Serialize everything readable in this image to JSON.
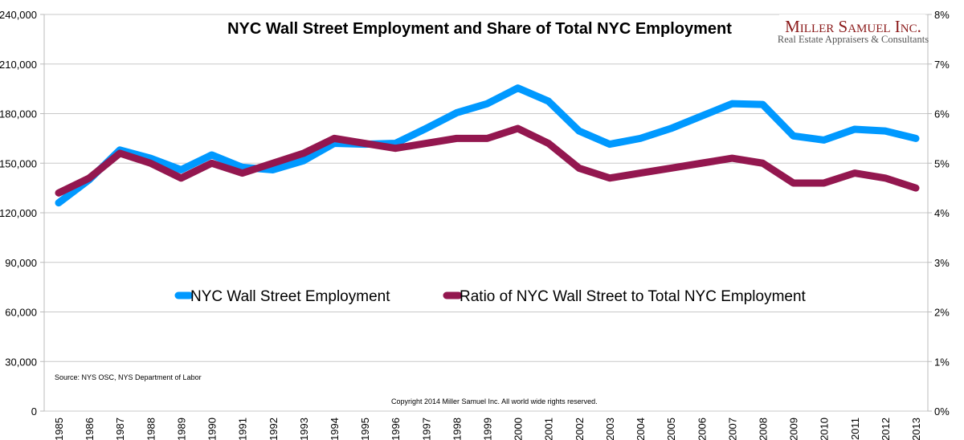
{
  "chart_data": {
    "type": "line",
    "title": "NYC Wall Street Employment and Share of Total NYC Employment",
    "x": [
      1985,
      1986,
      1987,
      1988,
      1989,
      1990,
      1991,
      1992,
      1993,
      1994,
      1995,
      1996,
      1997,
      1998,
      1999,
      2000,
      2001,
      2002,
      2003,
      2004,
      2005,
      2006,
      2007,
      2008,
      2009,
      2010,
      2011,
      2012,
      2013
    ],
    "y_left": {
      "ylim": [
        0,
        240000
      ],
      "ticks": [
        0,
        30000,
        60000,
        90000,
        120000,
        150000,
        180000,
        210000,
        240000
      ],
      "tick_labels": [
        "0",
        "30,000",
        "60,000",
        "90,000",
        "120,000",
        "150,000",
        "180,000",
        "210,000",
        "240,000"
      ]
    },
    "y_right": {
      "ylim": [
        0,
        8
      ],
      "ticks": [
        0,
        1,
        2,
        3,
        4,
        5,
        6,
        7,
        8
      ],
      "tick_labels": [
        "0%",
        "1%",
        "2%",
        "3%",
        "4%",
        "5%",
        "6%",
        "7%",
        "8%"
      ]
    },
    "grid": true,
    "legend_placement": "center",
    "series": [
      {
        "name": "NYC Wall Street Employment",
        "axis": "left",
        "color": "#0099ff",
        "values": [
          126000,
          140000,
          158000,
          153000,
          146000,
          155000,
          147500,
          146000,
          151500,
          162000,
          161500,
          162000,
          171000,
          180500,
          186000,
          195500,
          187500,
          169500,
          161500,
          165000,
          171000,
          178500,
          186000,
          185500,
          166500,
          164000,
          170500,
          169500,
          165000
        ]
      },
      {
        "name": "Ratio of NYC Wall Street to Total NYC Employment",
        "axis": "right",
        "color": "#93174f",
        "values": [
          4.4,
          4.7,
          5.2,
          5.0,
          4.7,
          5.0,
          4.8,
          5.0,
          5.2,
          5.5,
          5.4,
          5.3,
          5.4,
          5.5,
          5.5,
          5.7,
          5.4,
          4.9,
          4.7,
          4.8,
          4.9,
          5.0,
          5.1,
          5.0,
          4.6,
          4.6,
          4.8,
          4.7,
          4.5
        ]
      }
    ]
  },
  "source": "Source: NYS OSC, NYS Department of Labor",
  "copyright": "Copyright 2014 Miller Samuel Inc.  All world wide rights reserved.",
  "logo": {
    "name": "Miller Samuel Inc.",
    "tagline": "Real Estate Appraisers & Consultants"
  }
}
